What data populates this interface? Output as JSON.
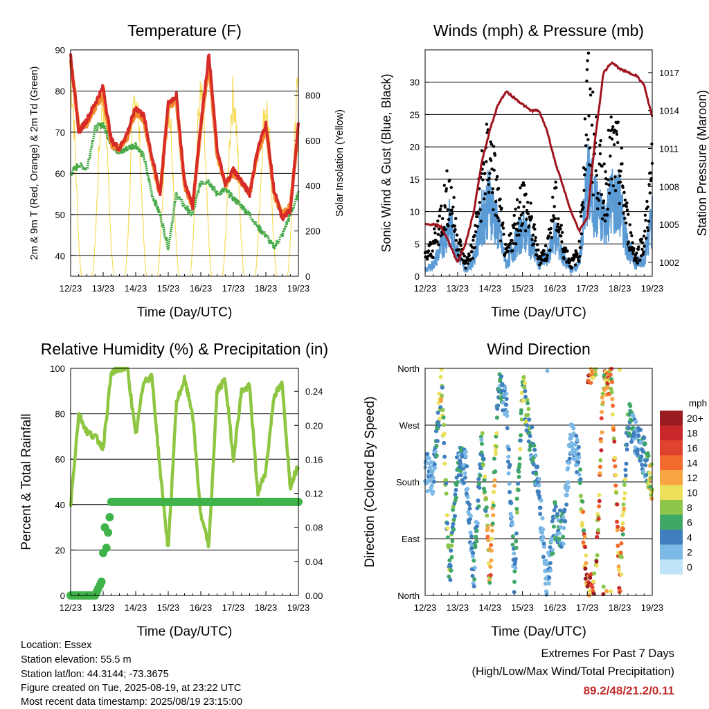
{
  "days": [
    "12/23",
    "13/23",
    "14/23",
    "15/23",
    "16/23",
    "17/23",
    "18/23",
    "19/23"
  ],
  "colors": {
    "temp_2m": "#d62b28",
    "temp_9m": "#f38a2e",
    "dewpoint": "#43a845",
    "solar": "#f7dc5c",
    "gust": "#000000",
    "wind": "#5a9bd5",
    "pressure": "#a0141e",
    "humidity": "#8ec641",
    "precip": "#3fb34a"
  },
  "charts": [
    {
      "id": "temperature",
      "title": "Temperature (F)",
      "xlabel": "Time (Day/UTC)",
      "ylabel_left": "2m & 9m T (Red, Orange) & 2m Td (Green)",
      "ylabel_right": "Solar Insolation (Yellow)",
      "left_ticks": [
        "40",
        "50",
        "60",
        "70",
        "80",
        "90"
      ],
      "right_ticks": [
        "0",
        "200",
        "400",
        "600",
        "800"
      ]
    },
    {
      "id": "winds",
      "title": "Winds (mph) & Pressure (mb)",
      "xlabel": "Time (Day/UTC)",
      "ylabel_left": "Sonic Wind & Gust (Blue, Black)",
      "ylabel_right": "Station Pressure (Maroon)",
      "left_ticks": [
        "0",
        "5",
        "10",
        "15",
        "20",
        "25",
        "30"
      ],
      "right_ticks": [
        "1002",
        "1005",
        "1008",
        "1011",
        "1014",
        "1017"
      ]
    },
    {
      "id": "humidity",
      "title": "Relative Humidity (%) & Precipitation (in)",
      "xlabel": "Time (Day/UTC)",
      "ylabel_left": "Percent & Total Rainfall",
      "left_ticks": [
        "0",
        "20",
        "40",
        "60",
        "80",
        "100"
      ],
      "right_ticks": [
        "0.00",
        "0.04",
        "0.08",
        "0.12",
        "0.16",
        "0.20",
        "0.24"
      ]
    },
    {
      "id": "direction",
      "title": "Wind Direction",
      "xlabel": "Time (Day/UTC)",
      "ylabel_left": "Direction (Colored By Speed)",
      "left_ticks": [
        "North",
        "East",
        "South",
        "West",
        "North"
      ]
    }
  ],
  "legend": {
    "title": "mph",
    "labels": [
      "20+",
      "18",
      "16",
      "14",
      "12",
      "10",
      "8",
      "6",
      "4",
      "2",
      "0"
    ],
    "colors": [
      "#9a1c20",
      "#c8272b",
      "#e0432d",
      "#f06b2d",
      "#f7a443",
      "#ece05a",
      "#8cc74b",
      "#3fa866",
      "#3f7fbf",
      "#7db9e6",
      "#bfe4f7"
    ]
  },
  "info": [
    "Location: Essex",
    "Station elevation: 55.5 m",
    "Station lat/lon: 44.3144; -73.3675",
    "Figure created on Tue, 2025-08-19, at 23:22 UTC",
    "Most recent data timestamp: 2025/08/19 23:15:00"
  ],
  "extremes": {
    "title": "Extremes For Past 7 Days",
    "subtitle": "(High/Low/Max Wind/Total Precipitation)",
    "values": "89.2/48/21.2/0.11"
  },
  "chart_data": [
    {
      "type": "line",
      "title": "Temperature (F)",
      "xlabel": "Time (Day/UTC)",
      "ylabel": "2m & 9m T (Red, Orange) & 2m Td (Green)",
      "ylabel_right": "Solar Insolation (Yellow)",
      "x": [
        12.0,
        12.25,
        12.5,
        12.75,
        13.0,
        13.25,
        13.5,
        13.75,
        14.0,
        14.25,
        14.5,
        14.75,
        15.0,
        15.25,
        15.5,
        15.75,
        16.0,
        16.25,
        16.5,
        16.75,
        17.0,
        17.25,
        17.5,
        17.75,
        18.0,
        18.25,
        18.5,
        18.75,
        19.0
      ],
      "ylim": [
        35,
        90
      ],
      "y2lim": [
        0,
        1000
      ],
      "series": [
        {
          "name": "2m T",
          "axis": "left",
          "values": [
            89,
            70,
            73,
            77,
            81,
            68,
            66,
            70,
            76,
            74,
            64,
            55,
            77,
            79,
            58,
            52,
            72,
            89,
            66,
            57,
            61,
            58,
            55,
            66,
            72,
            56,
            49,
            51,
            72
          ]
        },
        {
          "name": "9m T",
          "axis": "left",
          "values": [
            88,
            71,
            72,
            76,
            79,
            67,
            66,
            69,
            75,
            73,
            63,
            55,
            76,
            78,
            57,
            52,
            71,
            87,
            65,
            57,
            60,
            58,
            55,
            65,
            71,
            55,
            50,
            52,
            71
          ]
        },
        {
          "name": "2m Td",
          "axis": "left",
          "values": [
            60,
            62,
            61,
            71,
            72,
            67,
            65,
            66,
            67,
            64,
            55,
            50,
            42,
            55,
            52,
            50,
            58,
            58,
            55,
            56,
            54,
            52,
            50,
            47,
            45,
            42,
            45,
            50,
            55
          ]
        },
        {
          "name": "Solar Insolation",
          "axis": "right",
          "type": "area",
          "values": [
            980,
            0,
            0,
            0,
            880,
            0,
            0,
            0,
            920,
            0,
            0,
            0,
            860,
            0,
            0,
            0,
            890,
            0,
            0,
            0,
            900,
            0,
            0,
            0,
            850,
            0,
            0,
            0,
            960
          ]
        }
      ]
    },
    {
      "type": "scatter",
      "title": "Winds (mph) & Pressure (mb)",
      "xlabel": "Time (Day/UTC)",
      "ylabel": "Sonic Wind & Gust (Blue, Black)",
      "ylabel_right": "Station Pressure (Maroon)",
      "x": [
        12.0,
        12.25,
        12.5,
        12.75,
        13.0,
        13.25,
        13.5,
        13.75,
        14.0,
        14.25,
        14.5,
        14.75,
        15.0,
        15.25,
        15.5,
        15.75,
        16.0,
        16.25,
        16.5,
        16.75,
        17.0,
        17.25,
        17.5,
        17.75,
        18.0,
        18.25,
        18.5,
        18.75,
        19.0
      ],
      "ylim": [
        0,
        35
      ],
      "y2lim": [
        1000.9,
        1018.8
      ],
      "series": [
        {
          "name": "Gust",
          "axis": "left",
          "values": [
            3,
            5,
            10,
            14,
            6,
            2,
            5,
            16,
            20,
            12,
            3,
            8,
            13,
            9,
            3,
            4,
            12,
            5,
            2,
            4,
            28,
            20,
            14,
            20,
            18,
            8,
            3,
            6,
            17
          ]
        },
        {
          "name": "Sonic Wind",
          "axis": "left",
          "values": [
            1,
            2,
            5,
            9,
            4,
            1,
            3,
            10,
            13,
            8,
            2,
            5,
            8,
            6,
            2,
            3,
            7,
            3,
            1,
            2,
            16,
            12,
            9,
            13,
            12,
            5,
            2,
            3,
            10
          ]
        },
        {
          "name": "Station Pressure",
          "axis": "right",
          "type": "line",
          "values": [
            1005,
            1005,
            1004.8,
            1003.5,
            1002,
            1003.5,
            1006,
            1010,
            1012.5,
            1014.5,
            1015.5,
            1015,
            1014.5,
            1014,
            1014,
            1012.5,
            1010,
            1008,
            1006,
            1004.5,
            1005.5,
            1012,
            1017,
            1017.8,
            1017.3,
            1017,
            1016.8,
            1016,
            1013.5
          ]
        }
      ]
    },
    {
      "type": "line",
      "title": "Relative Humidity (%) & Precipitation (in)",
      "xlabel": "Time (Day/UTC)",
      "ylabel": "Percent & Total Rainfall",
      "x": [
        12.0,
        12.25,
        12.5,
        12.75,
        13.0,
        13.25,
        13.5,
        13.75,
        14.0,
        14.25,
        14.5,
        14.75,
        15.0,
        15.25,
        15.5,
        15.75,
        16.0,
        16.25,
        16.5,
        16.75,
        17.0,
        17.25,
        17.5,
        17.75,
        18.0,
        18.25,
        18.5,
        18.75,
        19.0
      ],
      "ylim": [
        0,
        100
      ],
      "y2lim": [
        0,
        0.267
      ],
      "series": [
        {
          "name": "Relative Humidity",
          "axis": "left",
          "values": [
            40,
            80,
            72,
            70,
            65,
            98,
            100,
            100,
            70,
            95,
            96,
            55,
            20,
            85,
            95,
            80,
            35,
            22,
            90,
            95,
            60,
            90,
            92,
            45,
            55,
            88,
            93,
            48,
            58
          ]
        },
        {
          "name": "Total Precipitation",
          "axis": "right",
          "values": [
            0,
            0,
            0,
            0,
            0.02,
            0.11,
            0.11,
            0.11,
            0.11,
            0.11,
            0.11,
            0.11,
            0.11,
            0.11,
            0.11,
            0.11,
            0.11,
            0.11,
            0.11,
            0.11,
            0.11,
            0.11,
            0.11,
            0.11,
            0.11,
            0.11,
            0.11,
            0.11,
            0.11
          ]
        }
      ]
    },
    {
      "type": "scatter",
      "title": "Wind Direction",
      "xlabel": "Time (Day/UTC)",
      "ylabel": "Direction (Colored By Speed)",
      "x": [
        12.0,
        12.25,
        12.5,
        12.75,
        13.0,
        13.25,
        13.5,
        13.75,
        14.0,
        14.25,
        14.5,
        14.75,
        15.0,
        15.25,
        15.5,
        15.75,
        16.0,
        16.25,
        16.5,
        16.75,
        17.0,
        17.25,
        17.5,
        17.75,
        18.0,
        18.25,
        18.5,
        18.75,
        19.0
      ],
      "ylim": [
        0,
        360
      ],
      "yticks": [
        "North",
        "East",
        "South",
        "West",
        "North"
      ],
      "series": [
        {
          "name": "Direction",
          "values": [
            200,
            180,
            340,
            30,
            210,
            200,
            35,
            250,
            30,
            330,
            300,
            30,
            330,
            250,
            170,
            20,
            120,
            100,
            250,
            210,
            5,
            5,
            350,
            340,
            15,
            280,
            250,
            220,
            180
          ]
        },
        {
          "name": "Speed",
          "values": [
            3,
            2,
            9,
            6,
            5,
            3,
            4,
            5,
            12,
            6,
            3,
            4,
            8,
            5,
            3,
            2,
            5,
            4,
            2,
            3,
            18,
            14,
            12,
            12,
            13,
            5,
            3,
            4,
            10
          ]
        }
      ]
    }
  ]
}
